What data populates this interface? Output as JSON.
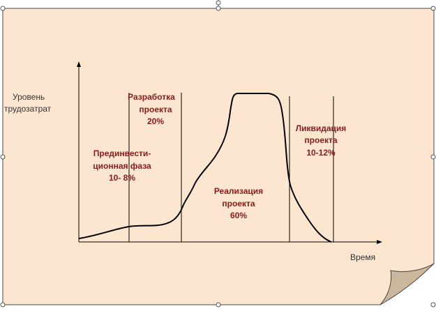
{
  "axes": {
    "y_label": [
      "Уровень",
      "трудозатрат"
    ],
    "x_label": "Время"
  },
  "phases": [
    {
      "lines": [
        "Прединвести-",
        "ционная фаза",
        "10- 8%"
      ]
    },
    {
      "lines": [
        "Разработка",
        "проекта",
        "20%"
      ]
    },
    {
      "lines": [
        "Реализация",
        "проекта",
        "60%"
      ]
    },
    {
      "lines": [
        "Ликвидация",
        "проекта",
        "10-12%"
      ]
    }
  ]
}
